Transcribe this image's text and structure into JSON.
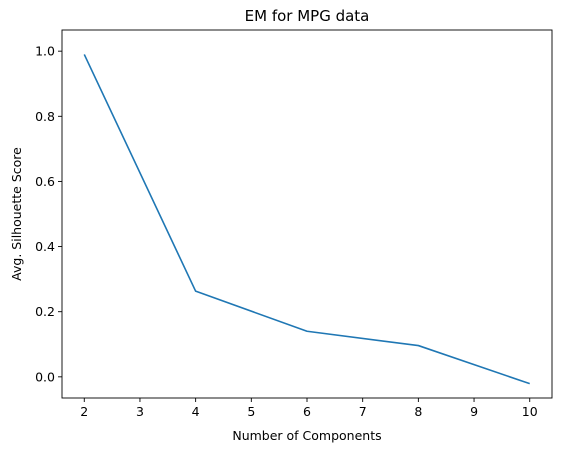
{
  "chart_data": {
    "type": "line",
    "title": "EM for MPG data",
    "xlabel": "Number of Components",
    "ylabel": "Avg. Silhouette Score",
    "xlim": [
      1.6,
      10.4
    ],
    "ylim": [
      -0.065,
      1.065
    ],
    "xticks": [
      2,
      3,
      4,
      5,
      6,
      7,
      8,
      9,
      10
    ],
    "yticks": [
      0.0,
      0.2,
      0.4,
      0.6,
      0.8,
      1.0
    ],
    "ytick_labels": [
      "0.0",
      "0.2",
      "0.4",
      "0.6",
      "0.8",
      "1.0"
    ],
    "grid": false,
    "series": [
      {
        "color": "#1f77b4",
        "x": [
          2,
          4,
          6,
          8,
          10
        ],
        "y": [
          0.99,
          0.263,
          0.14,
          0.096,
          -0.021
        ]
      }
    ]
  }
}
